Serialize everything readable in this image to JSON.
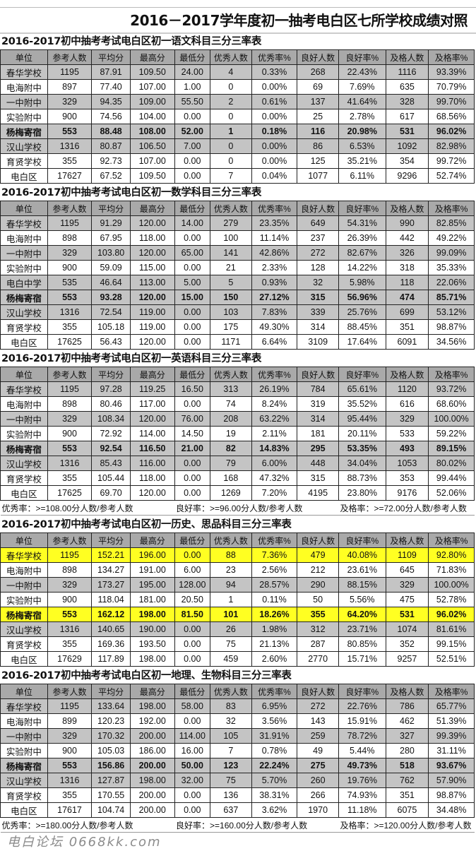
{
  "title": "2016－2017学年度初一抽考电白区七所学校成绩对照",
  "columns": [
    "单位",
    "参考人数",
    "平均分",
    "最高分",
    "最低分",
    "优秀人数",
    "优秀率%",
    "良好人数",
    "良好率%",
    "及格人数",
    "及格率%"
  ],
  "colors": {
    "header": "#a9a9a9",
    "gray_row": "#c4c4c4",
    "highlight": "#ffff22"
  },
  "sections": [
    {
      "title": "2016-2017初中抽考考试电白区初一语文科目三分三率表",
      "rows": [
        {
          "style": "gray",
          "cells": [
            "春华学校",
            "1195",
            "87.91",
            "109.50",
            "24.00",
            "4",
            "0.33%",
            "268",
            "22.43%",
            "1116",
            "93.39%"
          ]
        },
        {
          "style": "",
          "cells": [
            "电海附中",
            "897",
            "77.40",
            "107.00",
            "1.00",
            "0",
            "0.00%",
            "69",
            "7.69%",
            "635",
            "70.79%"
          ]
        },
        {
          "style": "gray",
          "cells": [
            "一中附中",
            "329",
            "94.35",
            "109.00",
            "55.50",
            "2",
            "0.61%",
            "137",
            "41.64%",
            "328",
            "99.70%"
          ]
        },
        {
          "style": "",
          "cells": [
            "实验附中",
            "900",
            "74.56",
            "104.00",
            "0.00",
            "0",
            "0.00%",
            "25",
            "2.78%",
            "617",
            "68.56%"
          ]
        },
        {
          "style": "gray bold",
          "cells": [
            "杨梅寄宿",
            "553",
            "88.48",
            "108.00",
            "52.00",
            "1",
            "0.18%",
            "116",
            "20.98%",
            "531",
            "96.02%"
          ]
        },
        {
          "style": "gray",
          "cells": [
            "汉山学校",
            "1316",
            "80.87",
            "106.50",
            "7.00",
            "0",
            "0.00%",
            "86",
            "6.53%",
            "1092",
            "82.98%"
          ]
        },
        {
          "style": "",
          "cells": [
            "育贤学校",
            "355",
            "92.73",
            "107.00",
            "0.00",
            "0",
            "0.00%",
            "125",
            "35.21%",
            "354",
            "99.72%"
          ]
        },
        {
          "style": "",
          "cells": [
            "电白区",
            "17627",
            "67.52",
            "109.50",
            "0.00",
            "7",
            "0.04%",
            "1077",
            "6.11%",
            "9296",
            "52.74%"
          ]
        }
      ]
    },
    {
      "title": "2016-2017初中抽考考试电白区初一数学科目三分三率表",
      "rows": [
        {
          "style": "gray",
          "cells": [
            "春华学校",
            "1195",
            "91.29",
            "120.00",
            "14.00",
            "279",
            "23.35%",
            "649",
            "54.31%",
            "990",
            "82.85%"
          ]
        },
        {
          "style": "",
          "cells": [
            "电海附中",
            "898",
            "67.95",
            "118.00",
            "0.00",
            "100",
            "11.14%",
            "237",
            "26.39%",
            "442",
            "49.22%"
          ]
        },
        {
          "style": "gray",
          "cells": [
            "一中附中",
            "329",
            "103.80",
            "120.00",
            "65.00",
            "141",
            "42.86%",
            "272",
            "82.67%",
            "326",
            "99.09%"
          ]
        },
        {
          "style": "",
          "cells": [
            "实验附中",
            "900",
            "59.09",
            "115.00",
            "0.00",
            "21",
            "2.33%",
            "128",
            "14.22%",
            "318",
            "35.33%"
          ]
        },
        {
          "style": "gray",
          "cells": [
            "电白中学",
            "535",
            "46.64",
            "113.00",
            "5.00",
            "5",
            "0.93%",
            "32",
            "5.98%",
            "118",
            "22.06%"
          ]
        },
        {
          "style": "gray bold",
          "cells": [
            "杨梅寄宿",
            "553",
            "93.28",
            "120.00",
            "15.00",
            "150",
            "27.12%",
            "315",
            "56.96%",
            "474",
            "85.71%"
          ]
        },
        {
          "style": "gray",
          "cells": [
            "汉山学校",
            "1316",
            "72.54",
            "119.00",
            "0.00",
            "103",
            "7.83%",
            "339",
            "25.76%",
            "699",
            "53.12%"
          ]
        },
        {
          "style": "",
          "cells": [
            "育贤学校",
            "355",
            "105.18",
            "119.00",
            "0.00",
            "175",
            "49.30%",
            "314",
            "88.45%",
            "351",
            "98.87%"
          ]
        },
        {
          "style": "",
          "cells": [
            "电白区",
            "17625",
            "56.43",
            "120.00",
            "0.00",
            "1171",
            "6.64%",
            "3109",
            "17.64%",
            "6091",
            "34.56%"
          ]
        }
      ]
    },
    {
      "title": "2016-2017初中抽考考试电白区初一英语科目三分三率表",
      "rows": [
        {
          "style": "gray",
          "cells": [
            "春华学校",
            "1195",
            "97.28",
            "119.25",
            "16.50",
            "313",
            "26.19%",
            "784",
            "65.61%",
            "1120",
            "93.72%"
          ]
        },
        {
          "style": "",
          "cells": [
            "电海附中",
            "898",
            "80.46",
            "117.00",
            "0.00",
            "74",
            "8.24%",
            "319",
            "35.52%",
            "616",
            "68.60%"
          ]
        },
        {
          "style": "gray",
          "cells": [
            "一中附中",
            "329",
            "108.34",
            "120.00",
            "76.00",
            "208",
            "63.22%",
            "314",
            "95.44%",
            "329",
            "100.00%"
          ]
        },
        {
          "style": "",
          "cells": [
            "实验附中",
            "900",
            "72.92",
            "114.00",
            "14.50",
            "19",
            "2.11%",
            "181",
            "20.11%",
            "533",
            "59.22%"
          ]
        },
        {
          "style": "gray bold",
          "cells": [
            "杨梅寄宿",
            "553",
            "92.54",
            "116.50",
            "21.00",
            "82",
            "14.83%",
            "295",
            "53.35%",
            "493",
            "89.15%"
          ]
        },
        {
          "style": "gray",
          "cells": [
            "汉山学校",
            "1316",
            "85.43",
            "116.00",
            "0.00",
            "79",
            "6.00%",
            "448",
            "34.04%",
            "1053",
            "80.02%"
          ]
        },
        {
          "style": "",
          "cells": [
            "育贤学校",
            "355",
            "105.44",
            "118.00",
            "0.00",
            "168",
            "47.32%",
            "315",
            "88.73%",
            "353",
            "99.44%"
          ]
        },
        {
          "style": "",
          "cells": [
            "电白区",
            "17625",
            "69.70",
            "120.00",
            "0.00",
            "1269",
            "7.20%",
            "4195",
            "23.80%",
            "9176",
            "52.06%"
          ]
        }
      ],
      "note": {
        "excellent": "优秀率：>=108.00分人数/参考人数",
        "good": "良好率：>=96.00分人数/参考人数",
        "pass": "及格率：>=72.00分人数/参考人数"
      }
    },
    {
      "title": "2016-2017初中抽考考试电白区初一历史、思品科目三分三率表",
      "rows": [
        {
          "style": "yellow",
          "cells": [
            "春华学校",
            "1195",
            "152.21",
            "196.00",
            "0.00",
            "88",
            "7.36%",
            "479",
            "40.08%",
            "1109",
            "92.80%"
          ]
        },
        {
          "style": "",
          "cells": [
            "电海附中",
            "898",
            "134.27",
            "191.00",
            "6.00",
            "23",
            "2.56%",
            "212",
            "23.61%",
            "645",
            "71.83%"
          ]
        },
        {
          "style": "gray",
          "cells": [
            "一中附中",
            "329",
            "173.27",
            "195.00",
            "128.00",
            "94",
            "28.57%",
            "290",
            "88.15%",
            "329",
            "100.00%"
          ]
        },
        {
          "style": "",
          "cells": [
            "实验附中",
            "900",
            "118.04",
            "181.00",
            "20.50",
            "1",
            "0.11%",
            "50",
            "5.56%",
            "475",
            "52.78%"
          ]
        },
        {
          "style": "yellow bold",
          "cells": [
            "杨梅寄宿",
            "553",
            "162.12",
            "198.00",
            "81.50",
            "101",
            "18.26%",
            "355",
            "64.20%",
            "531",
            "96.02%"
          ]
        },
        {
          "style": "gray",
          "cells": [
            "汉山学校",
            "1316",
            "140.65",
            "190.00",
            "0.00",
            "26",
            "1.98%",
            "312",
            "23.71%",
            "1074",
            "81.61%"
          ]
        },
        {
          "style": "",
          "cells": [
            "育贤学校",
            "355",
            "169.36",
            "193.50",
            "0.00",
            "75",
            "21.13%",
            "287",
            "80.85%",
            "352",
            "99.15%"
          ]
        },
        {
          "style": "",
          "cells": [
            "电白区",
            "17629",
            "117.89",
            "198.00",
            "0.00",
            "459",
            "2.60%",
            "2770",
            "15.71%",
            "9257",
            "52.51%"
          ]
        }
      ]
    },
    {
      "title": "2016-2017初中抽考考试电白区初一地理、生物科目三分三率表",
      "rows": [
        {
          "style": "gray",
          "cells": [
            "春华学校",
            "1195",
            "133.64",
            "198.00",
            "58.00",
            "83",
            "6.95%",
            "272",
            "22.76%",
            "786",
            "65.77%"
          ]
        },
        {
          "style": "",
          "cells": [
            "电海附中",
            "899",
            "120.23",
            "192.00",
            "0.00",
            "32",
            "3.56%",
            "143",
            "15.91%",
            "462",
            "51.39%"
          ]
        },
        {
          "style": "gray",
          "cells": [
            "一中附中",
            "329",
            "170.32",
            "200.00",
            "114.00",
            "105",
            "31.91%",
            "259",
            "78.72%",
            "327",
            "99.39%"
          ]
        },
        {
          "style": "",
          "cells": [
            "实验附中",
            "900",
            "105.03",
            "186.00",
            "16.00",
            "7",
            "0.78%",
            "49",
            "5.44%",
            "280",
            "31.11%"
          ]
        },
        {
          "style": "gray bold",
          "cells": [
            "杨梅寄宿",
            "553",
            "156.86",
            "200.00",
            "50.00",
            "123",
            "22.24%",
            "275",
            "49.73%",
            "518",
            "93.67%"
          ]
        },
        {
          "style": "gray",
          "cells": [
            "汉山学校",
            "1316",
            "127.87",
            "198.00",
            "32.00",
            "75",
            "5.70%",
            "260",
            "19.76%",
            "762",
            "57.90%"
          ]
        },
        {
          "style": "",
          "cells": [
            "育贤学校",
            "355",
            "170.55",
            "200.00",
            "0.00",
            "136",
            "38.31%",
            "266",
            "74.93%",
            "351",
            "98.87%"
          ]
        },
        {
          "style": "",
          "cells": [
            "电白区",
            "17617",
            "104.74",
            "200.00",
            "0.00",
            "637",
            "3.62%",
            "1970",
            "11.18%",
            "6075",
            "34.48%"
          ]
        }
      ],
      "note": {
        "excellent": "优秀率：>=180.00分人数/参考人数",
        "good": "良好率：>=160.00分人数/参考人数",
        "pass": "及格率：>=120.00分人数/参考人数"
      }
    }
  ],
  "watermark": "电白论坛 0668kk.com"
}
